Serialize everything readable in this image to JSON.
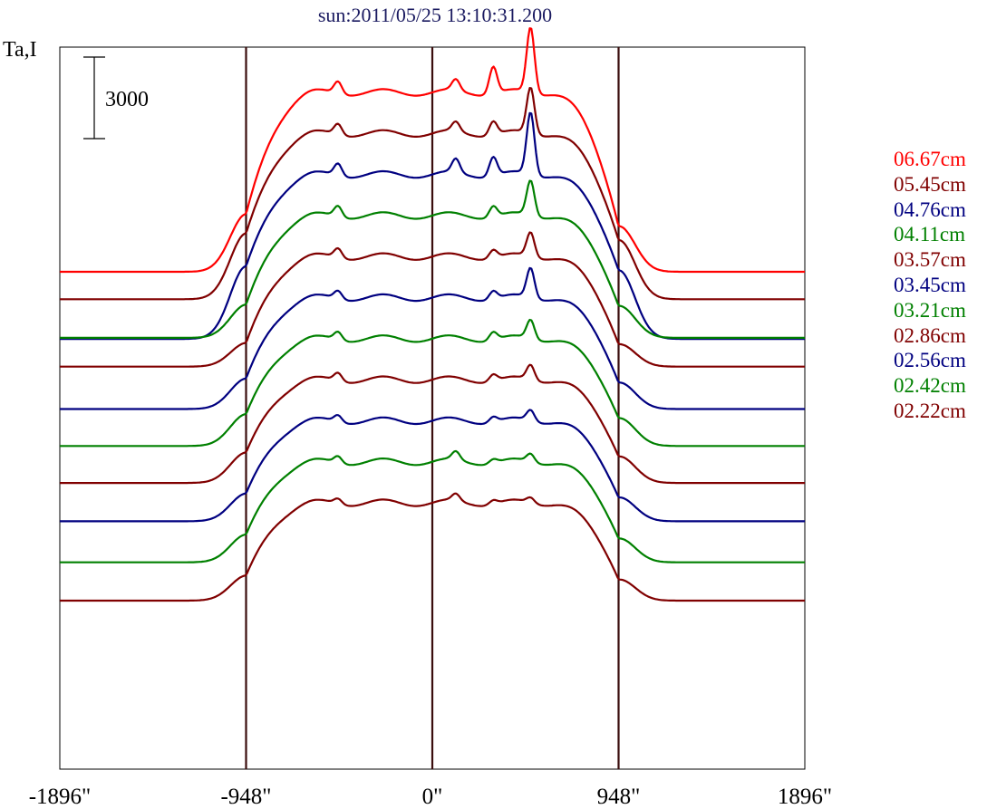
{
  "chart_data": {
    "type": "line",
    "title": "sun:2011/05/25 13:10:31.200",
    "ylabel": "Ta,I",
    "xlabel": "",
    "scale_bar_label": "3000",
    "x_ticks": [
      {
        "value": -1896,
        "label": "-1896\""
      },
      {
        "value": -948,
        "label": "-948\""
      },
      {
        "value": 0,
        "label": "0\""
      },
      {
        "value": 948,
        "label": "948\""
      },
      {
        "value": 1896,
        "label": "1896\""
      }
    ],
    "xlim": [
      -1896,
      1896
    ],
    "limb_lines": [
      -948,
      0,
      948
    ],
    "grid": false,
    "legend_position": "right",
    "series": [
      {
        "name": "06.67cm",
        "color": "#ff0000",
        "baseline": 2900,
        "limb_left": 5000,
        "limb_right": 4600,
        "disk": 9500,
        "peaks": [
          [
            -480,
            450
          ],
          [
            120,
            400
          ],
          [
            310,
            1000
          ],
          [
            500,
            2400
          ]
        ]
      },
      {
        "name": "05.45cm",
        "color": "#800000",
        "baseline": 2300,
        "limb_left": 4700,
        "limb_right": 4500,
        "disk": 8400,
        "peaks": [
          [
            -480,
            400
          ],
          [
            120,
            350
          ],
          [
            310,
            500
          ],
          [
            500,
            1700
          ]
        ]
      },
      {
        "name": "04.76cm",
        "color": "#000080",
        "baseline": 1750,
        "limb_left": 4400,
        "limb_right": 4300,
        "disk": 7800,
        "peaks": [
          [
            -480,
            450
          ],
          [
            120,
            500
          ],
          [
            310,
            700
          ],
          [
            500,
            2300
          ]
        ]
      },
      {
        "name": "04.11cm",
        "color": "#008000",
        "baseline": 2300,
        "limb_left": 3500,
        "limb_right": 3500,
        "disk": 6800,
        "peaks": [
          [
            -480,
            400
          ],
          [
            310,
            400
          ],
          [
            500,
            1300
          ]
        ]
      },
      {
        "name": "03.57cm",
        "color": "#800000",
        "baseline": 2350,
        "limb_left": 3200,
        "limb_right": 3200,
        "disk": 6400,
        "peaks": [
          [
            -480,
            350
          ],
          [
            310,
            300
          ],
          [
            500,
            900
          ]
        ]
      },
      {
        "name": "03.45cm",
        "color": "#000080",
        "baseline": 2100,
        "limb_left": 3200,
        "limb_right": 3100,
        "disk": 6200,
        "peaks": [
          [
            -480,
            300
          ],
          [
            310,
            300
          ],
          [
            500,
            1100
          ]
        ]
      },
      {
        "name": "03.21cm",
        "color": "#008000",
        "baseline": 1950,
        "limb_left": 3100,
        "limb_right": 3000,
        "disk": 5900,
        "peaks": [
          [
            -480,
            300
          ],
          [
            310,
            300
          ],
          [
            500,
            700
          ]
        ]
      },
      {
        "name": "02.86cm",
        "color": "#800000",
        "baseline": 1800,
        "limb_left": 2900,
        "limb_right": 2800,
        "disk": 5600,
        "peaks": [
          [
            -480,
            300
          ],
          [
            310,
            250
          ],
          [
            500,
            550
          ]
        ]
      },
      {
        "name": "02.56cm",
        "color": "#000080",
        "baseline": 1700,
        "limb_left": 2700,
        "limb_right": 2600,
        "disk": 5400,
        "peaks": [
          [
            -480,
            250
          ],
          [
            310,
            200
          ],
          [
            500,
            400
          ]
        ]
      },
      {
        "name": "02.42cm",
        "color": "#008000",
        "baseline": 1500,
        "limb_left": 2500,
        "limb_right": 2400,
        "disk": 5200,
        "peaks": [
          [
            -480,
            250
          ],
          [
            120,
            300
          ],
          [
            310,
            150
          ],
          [
            500,
            300
          ]
        ]
      },
      {
        "name": "02.22cm",
        "color": "#800000",
        "baseline": 1500,
        "limb_left": 2400,
        "limb_right": 2300,
        "disk": 5100,
        "peaks": [
          [
            -480,
            200
          ],
          [
            120,
            250
          ],
          [
            310,
            150
          ],
          [
            500,
            200
          ]
        ]
      }
    ]
  }
}
